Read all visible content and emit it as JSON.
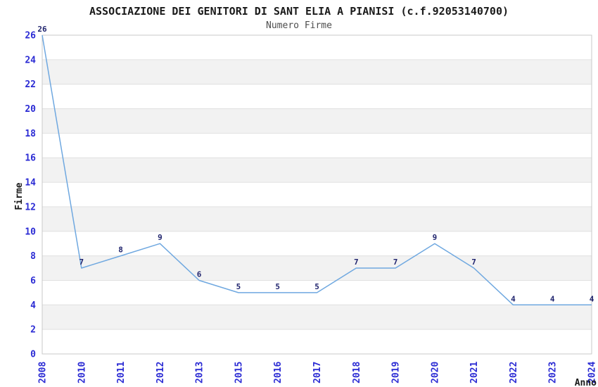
{
  "title": "ASSOCIAZIONE DEI GENITORI DI SANT ELIA A PIANISI (c.f.92053140700)",
  "subtitle": "Numero Firme",
  "chart_data": {
    "type": "line",
    "categories": [
      "2008",
      "2010",
      "2011",
      "2012",
      "2013",
      "2015",
      "2016",
      "2017",
      "2018",
      "2019",
      "2020",
      "2021",
      "2022",
      "2023",
      "2024"
    ],
    "values": [
      26,
      7,
      8,
      9,
      6,
      5,
      5,
      5,
      7,
      7,
      9,
      7,
      4,
      4,
      4
    ],
    "title": "ASSOCIAZIONE DEI GENITORI DI SANT ELIA A PIANISI (c.f.92053140700)",
    "subtitle": "Numero Firme",
    "xlabel": "Anno",
    "ylabel": "Firme",
    "ylim": [
      0,
      26
    ],
    "yticks": [
      0,
      2,
      4,
      6,
      8,
      10,
      12,
      14,
      16,
      18,
      20,
      22,
      24,
      26
    ],
    "grid": "horizontal",
    "alternating_bands": true,
    "legend": "none",
    "data_labels": true,
    "x_tick_rotation": -90
  },
  "colors": {
    "line": "#6fa8e0",
    "tick_label": "#2b2bd4",
    "data_label": "#20246e",
    "band_fill": "#f2f2f2",
    "gridline": "#e0e0e0",
    "plot_border": "#c9c9c9",
    "title": "#1a1a1a",
    "subtitle": "#4d4d4d",
    "axis_title": "#1a1a1a",
    "background": "#ffffff"
  }
}
